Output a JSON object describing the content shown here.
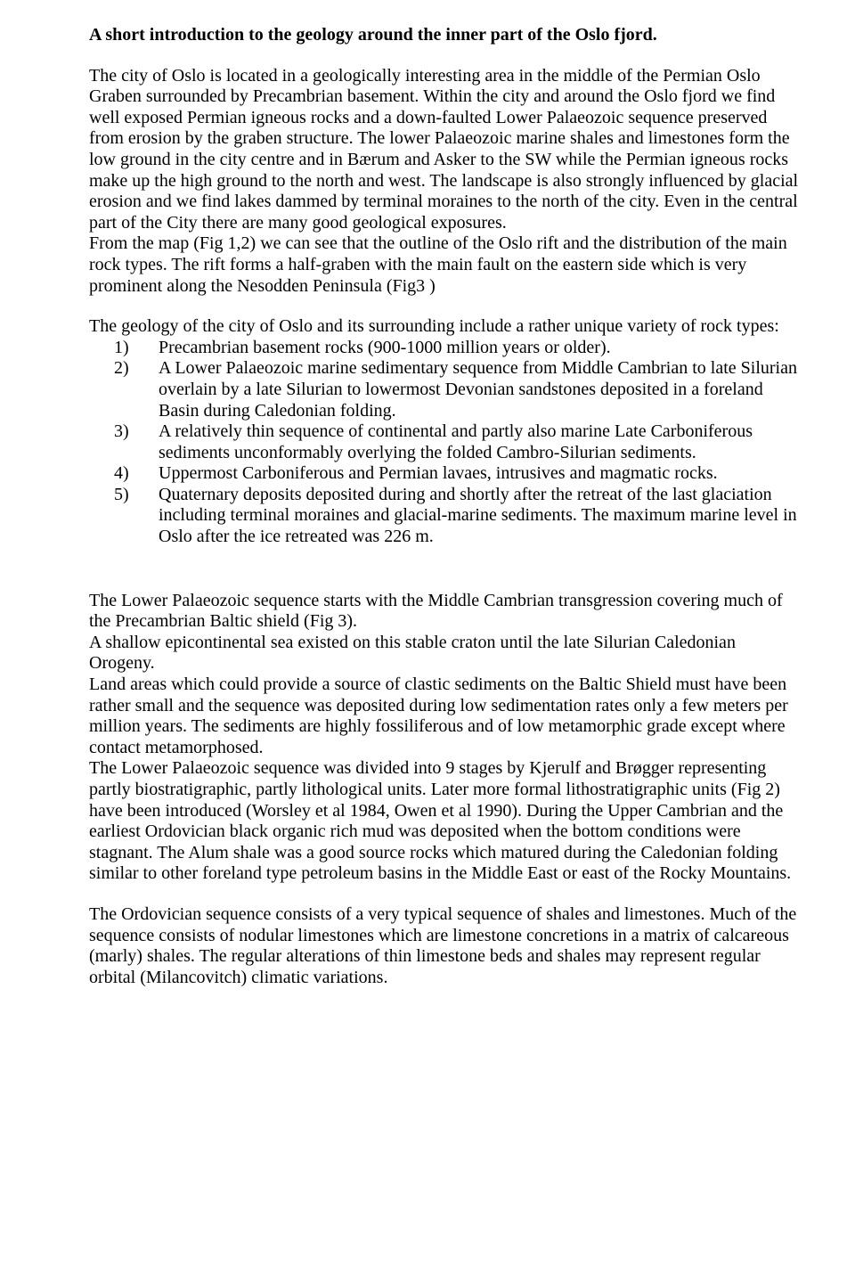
{
  "title": "A short introduction to the geology around the inner part of the Oslo fjord.",
  "p1": "The city of Oslo is located in a geologically interesting area in the middle of the Permian Oslo Graben surrounded by Precambrian basement. Within the city and around the Oslo fjord we find well exposed Permian igneous rocks and a down-faulted Lower Palaeozoic sequence preserved from erosion by the graben structure. The lower Palaeozoic marine shales and limestones form the low ground in the city centre and in Bærum and Asker to the SW while the Permian igneous rocks make up the high ground to the north and west. The landscape is also strongly influenced by glacial erosion and we find lakes dammed by terminal moraines to the north of the city. Even in the central part of the City there are many good geological exposures.",
  "p1b": "From the map (Fig 1,2) we can see that the outline of the Oslo rift and the distribution of the main rock types. The rift forms a half-graben with the main fault on the eastern side which is very prominent along the Nesodden Peninsula (Fig3 )",
  "p2": "The geology of the city of Oslo and its surrounding include a rather unique variety of rock types:",
  "list": [
    {
      "n": "1)",
      "t": "Precambrian basement rocks (900-1000 million years or older)."
    },
    {
      "n": "2)",
      "t": "A Lower Palaeozoic marine sedimentary sequence from Middle Cambrian to late Silurian overlain by a late Silurian to lowermost Devonian sandstones deposited in a foreland Basin during Caledonian folding."
    },
    {
      "n": "3)",
      "t": "A relatively thin sequence of continental and partly also marine Late Carboniferous sediments unconformably overlying the folded Cambro-Silurian sediments."
    },
    {
      "n": "4)",
      "t": "Uppermost Carboniferous and Permian lavaes, intrusives and magmatic rocks."
    },
    {
      "n": "5)",
      "t": "Quaternary deposits deposited during and shortly after the retreat of the last glaciation including terminal moraines and glacial-marine sediments. The maximum marine level in Oslo after the ice retreated was 226 m."
    }
  ],
  "p3a": "The Lower Palaeozoic sequence starts with the Middle Cambrian transgression covering much of the Precambrian Baltic shield (Fig 3).",
  "p3b": "A shallow epicontinental sea existed on this stable craton until the late Silurian Caledonian Orogeny.",
  "p3c": "Land areas which could provide a source of clastic sediments on the Baltic Shield must have been rather small and the sequence was deposited during low sedimentation rates only a few meters per million years. The sediments are highly fossiliferous and of low metamorphic grade except where contact metamorphosed.",
  "p3d": "The Lower Palaeozoic sequence was divided into 9 stages by Kjerulf and Brøgger representing partly biostratigraphic, partly lithological units. Later more formal lithostratigraphic units (Fig 2) have been introduced (Worsley et al 1984, Owen et al 1990). During the Upper Cambrian and the earliest Ordovician black organic rich mud was deposited when the bottom conditions were stagnant. The Alum shale was a good source rocks which matured during the Caledonian folding similar to other foreland type petroleum basins in the Middle East or east of the Rocky Mountains.",
  "p4": "The Ordovician sequence consists of a very typical sequence of shales and limestones. Much of the sequence consists of nodular limestones which are limestone concretions in a matrix of calcareous (marly) shales. The regular alterations of thin limestone beds and shales may represent regular orbital (Milancovitch) climatic variations."
}
